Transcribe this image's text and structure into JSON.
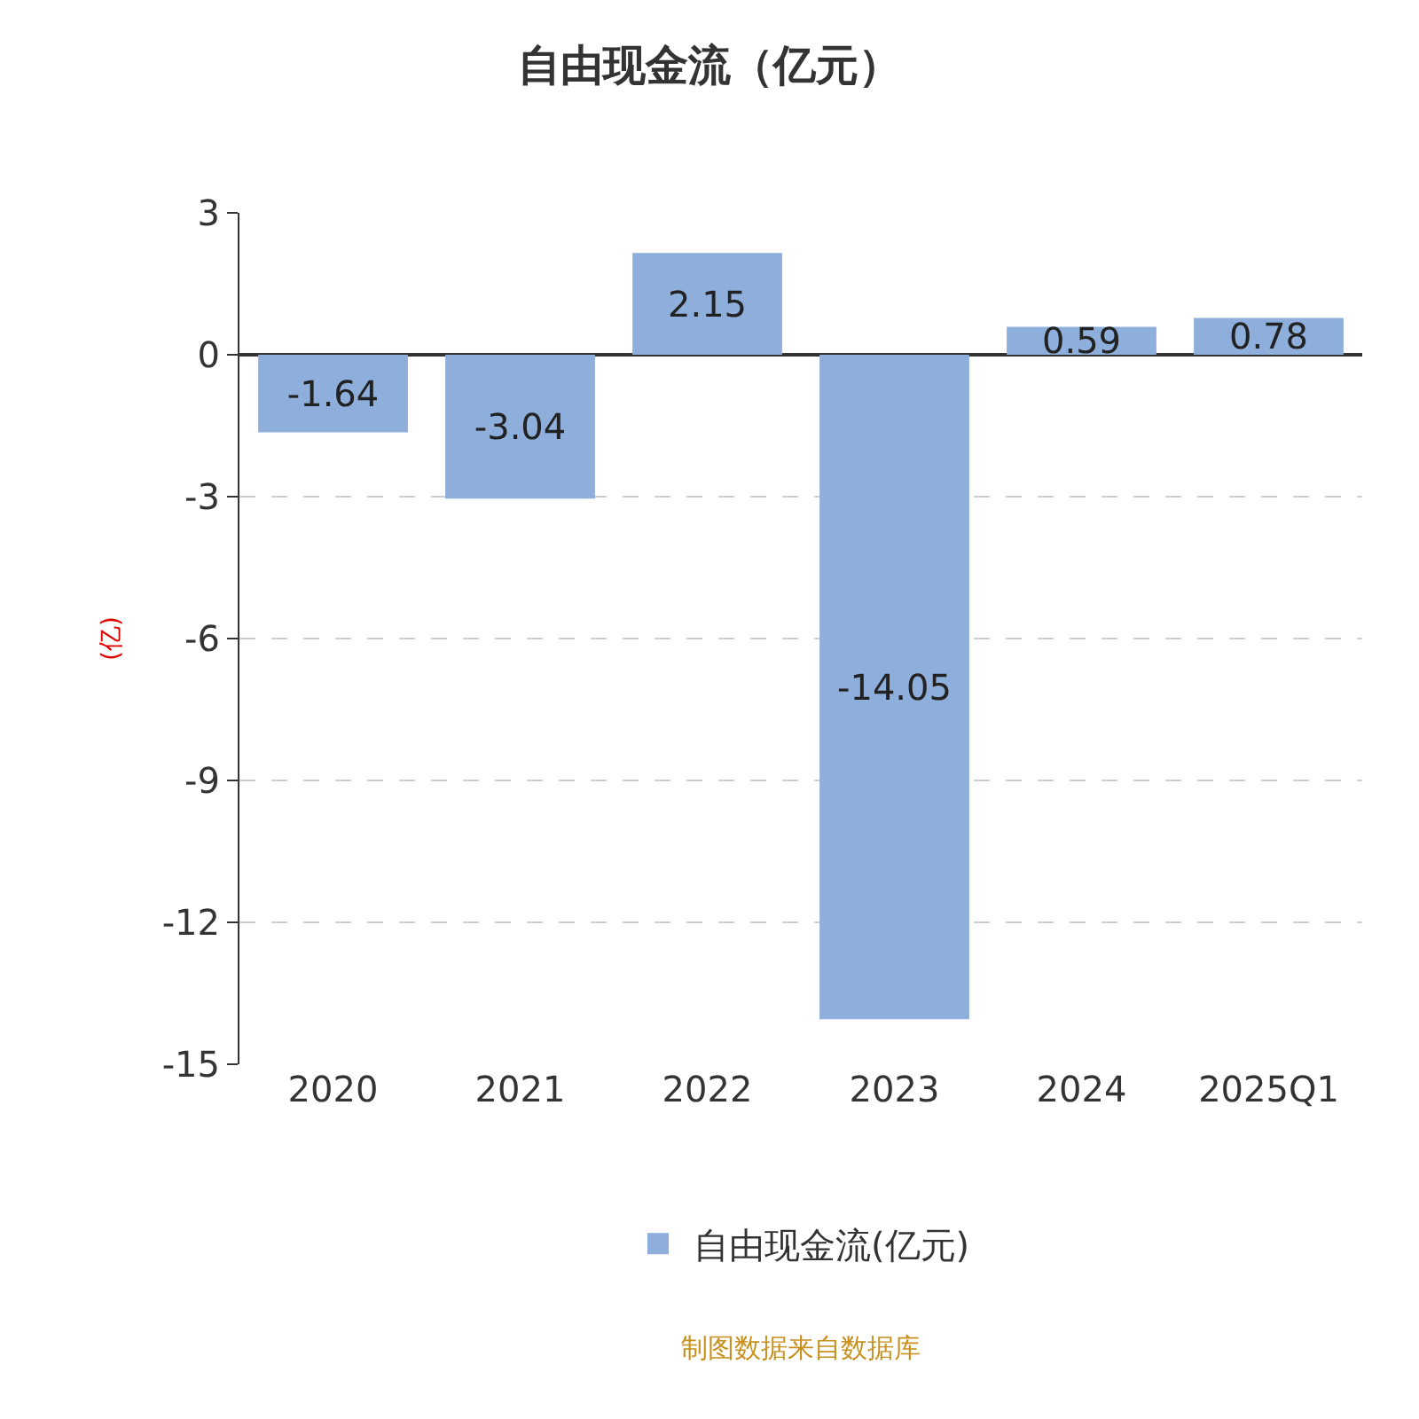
{
  "chart_data": {
    "type": "bar",
    "title": "自由现金流（亿元）",
    "ylabel": "(亿)",
    "categories": [
      "2020",
      "2021",
      "2022",
      "2023",
      "2024",
      "2025Q1"
    ],
    "series": [
      {
        "name": "自由现金流(亿元)",
        "color": "#8eaedb",
        "values": [
          -1.64,
          -3.04,
          2.15,
          -14.05,
          0.59,
          0.78
        ]
      }
    ],
    "ylim": [
      -15,
      3
    ],
    "yticks": [
      -15,
      -12,
      -9,
      -6,
      -3,
      0,
      3
    ],
    "grid": "y",
    "legend": "bottom",
    "data_labels": true,
    "annotations": [
      "制图数据来自数据库"
    ]
  }
}
